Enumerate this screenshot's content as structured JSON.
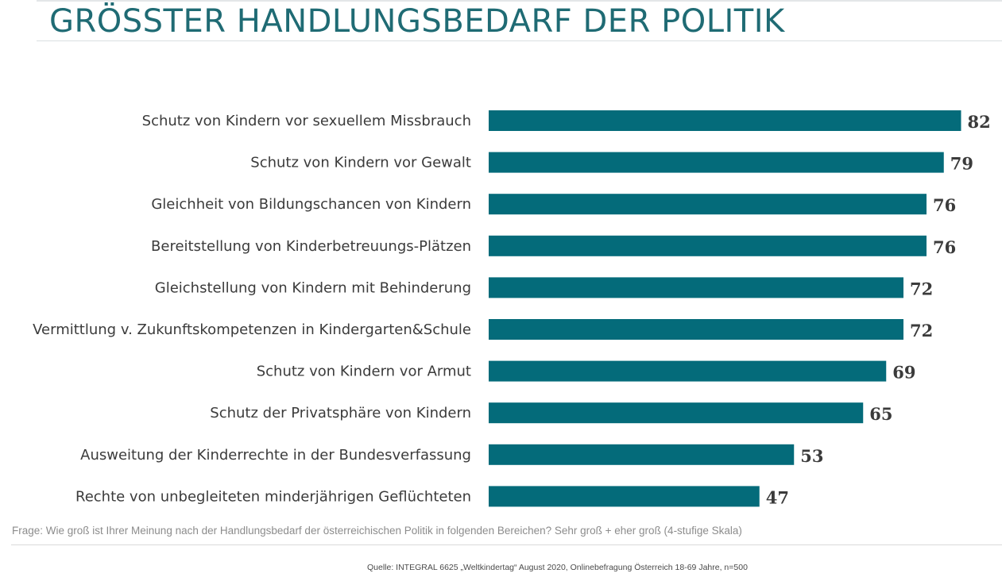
{
  "header": {
    "title": "GRÖSSTER HANDLUNGSBEDARF DER POLITIK"
  },
  "footer": {
    "question": "Frage: Wie groß ist Ihrer Meinung nach der Handlungsbedarf der österreichischen Politik in folgenden Bereichen? Sehr groß + eher groß (4-stufige Skala)",
    "source": "Quelle: INTEGRAL 6625 „Weltkindertag“ August 2020, Onlinebefragung Österreich 18-69 Jahre, n=500"
  },
  "chart_data": {
    "type": "bar",
    "orientation": "horizontal",
    "categories": [
      "Schutz von Kindern vor sexuellem Missbrauch",
      "Schutz von Kindern vor Gewalt",
      "Gleichheit von Bildungschancen von Kindern",
      "Bereitstellung von Kinderbetreuungs-Plätzen",
      "Gleichstellung von Kindern mit Behinderung",
      "Vermittlung v. Zukunftskompetenzen in Kindergarten&Schule",
      "Schutz von Kindern vor Armut",
      "Schutz der Privatsphäre von Kindern",
      "Ausweitung der Kinderrechte in der Bundesverfassung",
      "Rechte von unbegleiteten minderjährigen Geflüchteten"
    ],
    "values": [
      82,
      79,
      76,
      76,
      72,
      72,
      69,
      65,
      53,
      47
    ],
    "xlim": [
      0,
      100
    ],
    "grid": false,
    "legend": "none",
    "bar_color": "#046b7a"
  }
}
